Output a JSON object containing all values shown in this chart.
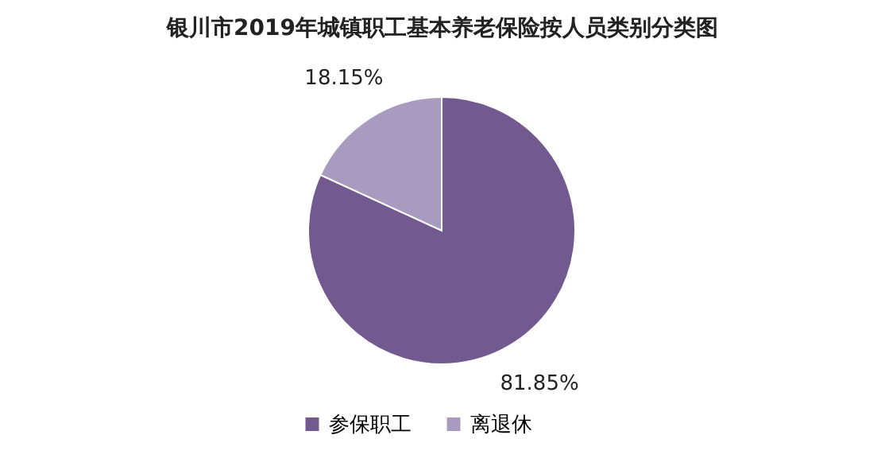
{
  "chart_data": {
    "type": "pie",
    "title": "银川市2019年城镇职工基本养老保险按人员类别分类图",
    "categories": [
      "参保职工",
      "离退休"
    ],
    "values": [
      81.85,
      18.15
    ],
    "value_labels": [
      "81.85%",
      "18.15%"
    ],
    "colors": [
      "#725a90",
      "#a99bbf"
    ],
    "legend": "bottom"
  }
}
